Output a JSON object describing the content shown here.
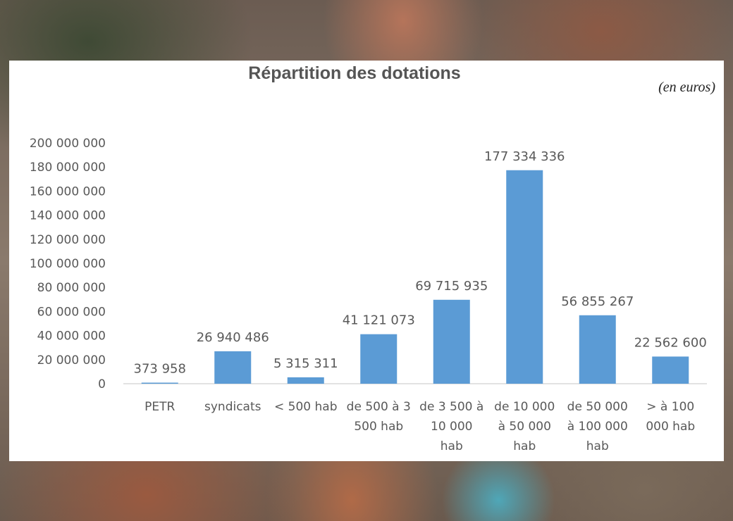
{
  "chart_data": {
    "type": "bar",
    "title": "Répartition des dotations",
    "unit_note": "(en euros)",
    "categories": [
      [
        "PETR"
      ],
      [
        "syndicats"
      ],
      [
        "< 500 hab"
      ],
      [
        "de 500 à 3",
        "500 hab"
      ],
      [
        "de 3 500 à",
        "10 000",
        "hab"
      ],
      [
        "de 10 000",
        "à 50 000",
        "hab"
      ],
      [
        "de 50 000",
        "à 100 000",
        "hab"
      ],
      [
        "> à 100",
        "000 hab"
      ]
    ],
    "values": [
      373958,
      26940486,
      5315311,
      41121073,
      69715935,
      177334336,
      56855267,
      22562600
    ],
    "value_labels": [
      "373 958",
      "26 940 486",
      "5 315 311",
      "41 121 073",
      "69 715 935",
      "177 334 336",
      "56 855 267",
      "22 562 600"
    ],
    "ylim": [
      0,
      200000000
    ],
    "y_ticks": [
      "0",
      "20 000 000",
      "40 000 000",
      "60 000 000",
      "80 000 000",
      "100 000 000",
      "120 000 000",
      "140 000 000",
      "160 000 000",
      "180 000 000",
      "200 000 000"
    ],
    "grid": false,
    "bar_color": "#5b9bd5"
  }
}
